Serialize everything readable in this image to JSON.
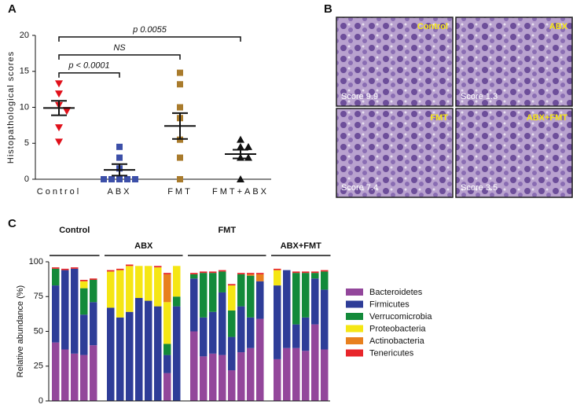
{
  "chart_data": [
    {
      "type": "dot",
      "panel": "A",
      "y_label": "Histopathological scores",
      "categories": [
        "Control",
        "ABX",
        "FMT",
        "FMT+ABX"
      ],
      "values": [
        [
          13.3,
          11.9,
          10.3,
          9.6,
          9.5,
          7.2,
          5.2
        ],
        [
          4.5,
          3,
          1.5,
          0,
          0,
          0,
          0,
          0
        ],
        [
          14.8,
          13.2,
          10,
          8.5,
          5.5,
          3,
          0
        ],
        [
          5.5,
          4.5,
          4.5,
          3,
          3,
          0
        ]
      ],
      "colors": [
        "#e0101a",
        "#3c4fa8",
        "#a97b2c",
        "#111111"
      ],
      "markers": [
        "triangle-down",
        "square",
        "square",
        "triangle-up"
      ],
      "mean": [
        9.9,
        1.3,
        7.4,
        3.5
      ],
      "sem": [
        1.0,
        0.8,
        1.8,
        0.6
      ],
      "ylim": [
        0,
        20
      ],
      "yticks": [
        0,
        5,
        10,
        15,
        20
      ],
      "annotations": [
        {
          "text": "p < 0.0001",
          "y": 15,
          "from": "Control",
          "to": "ABX"
        },
        {
          "text": "NS",
          "y": 17.5,
          "from": "Control",
          "to": "FMT"
        },
        {
          "text": "p 0.0055",
          "y": 20,
          "from": "Control",
          "to": "FMT+ABX"
        }
      ]
    },
    {
      "type": "stacked-bar",
      "panel": "C",
      "y_label": "Relative abundance (%)",
      "ylim": [
        0,
        100
      ],
      "yticks": [
        0,
        25,
        50,
        75,
        100
      ],
      "groups": [
        {
          "label": "Control",
          "categories": [
            null,
            null,
            null,
            null,
            null
          ]
        },
        {
          "label": "ABX",
          "categories": [
            null,
            null,
            null,
            null,
            null,
            null,
            null,
            null
          ]
        },
        {
          "label": "FMT",
          "categories": [
            null,
            null,
            null,
            null,
            null,
            null,
            null,
            null
          ]
        },
        {
          "label": "ABX+FMT",
          "categories": [
            null,
            null,
            null,
            null,
            null,
            null
          ]
        }
      ],
      "series": [
        {
          "name": "Bacteroidetes",
          "color": "#93479b",
          "values": [
            42,
            37,
            34,
            33,
            40,
            0,
            0,
            0,
            0,
            0,
            0,
            20,
            0,
            50,
            32,
            34,
            33,
            22,
            35,
            38,
            59,
            30,
            38,
            38,
            36,
            55,
            37
          ]
        },
        {
          "name": "Firmicutes",
          "color": "#2e3d98",
          "values": [
            41,
            57,
            61,
            29,
            31,
            67,
            60,
            64,
            74,
            72,
            68,
            13,
            68,
            38,
            28,
            30,
            45,
            24,
            33,
            22,
            27,
            53,
            56,
            17,
            24,
            33,
            43
          ]
        },
        {
          "name": "Verrucomicrobia",
          "color": "#138a3a",
          "values": [
            12,
            0,
            0,
            19,
            16,
            0,
            0,
            0,
            0,
            0,
            0,
            8,
            7,
            3,
            32,
            28,
            15,
            19,
            23,
            30,
            0,
            0,
            0,
            37,
            32,
            4,
            13
          ]
        },
        {
          "name": "Proteobacteria",
          "color": "#f5e614",
          "values": [
            0,
            0,
            0,
            5,
            0,
            26,
            34,
            33,
            23,
            25,
            28,
            30,
            22,
            0,
            0,
            0,
            0,
            18,
            0,
            0,
            0,
            11,
            0,
            0,
            0,
            0,
            0
          ]
        },
        {
          "name": "Actinobacteria",
          "color": "#e8801e",
          "values": [
            0,
            0,
            0,
            0,
            0,
            0,
            0,
            0,
            0,
            0,
            0,
            20,
            0,
            0,
            0,
            0,
            0,
            0,
            0,
            1,
            5,
            0,
            0,
            0,
            0,
            0,
            0
          ]
        },
        {
          "name": "Tenericutes",
          "color": "#e8262b",
          "values": [
            1,
            1,
            1,
            1,
            1,
            1,
            1,
            1,
            0,
            0,
            1,
            1,
            0,
            1,
            1,
            1,
            1,
            1,
            1,
            1,
            1,
            1,
            0,
            1,
            1,
            1,
            1
          ]
        }
      ]
    }
  ],
  "panel_b": {
    "panel": "B",
    "images": [
      {
        "label": "Control",
        "score": "Score 9.9"
      },
      {
        "label": "ABX",
        "score": "Score 1.3"
      },
      {
        "label": "FMT",
        "score": "Score 7.4"
      },
      {
        "label": "ABX+FMT",
        "score": "Score 3.5"
      }
    ]
  }
}
